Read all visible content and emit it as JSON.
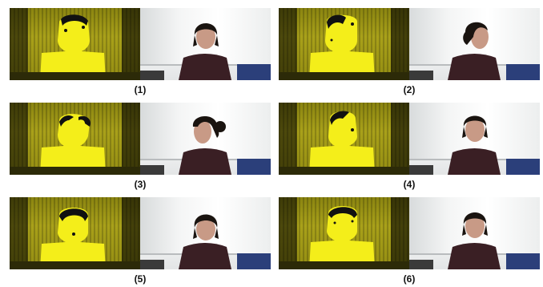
{
  "panels": [
    {
      "caption": "(1)",
      "pose": "front"
    },
    {
      "caption": "(2)",
      "pose": "turn-right"
    },
    {
      "caption": "(3)",
      "pose": "turn-left"
    },
    {
      "caption": "(4)",
      "pose": "look-up"
    },
    {
      "caption": "(5)",
      "pose": "look-down"
    },
    {
      "caption": "(6)",
      "pose": "front-tilt"
    }
  ],
  "colors": {
    "depth_yellow": "#f4ee1a",
    "depth_dark": "#8a8410",
    "hair": "#1a1410",
    "skin": "#c89a86",
    "shirt": "#3a1f24",
    "blue_board": "#2b3f7a"
  }
}
